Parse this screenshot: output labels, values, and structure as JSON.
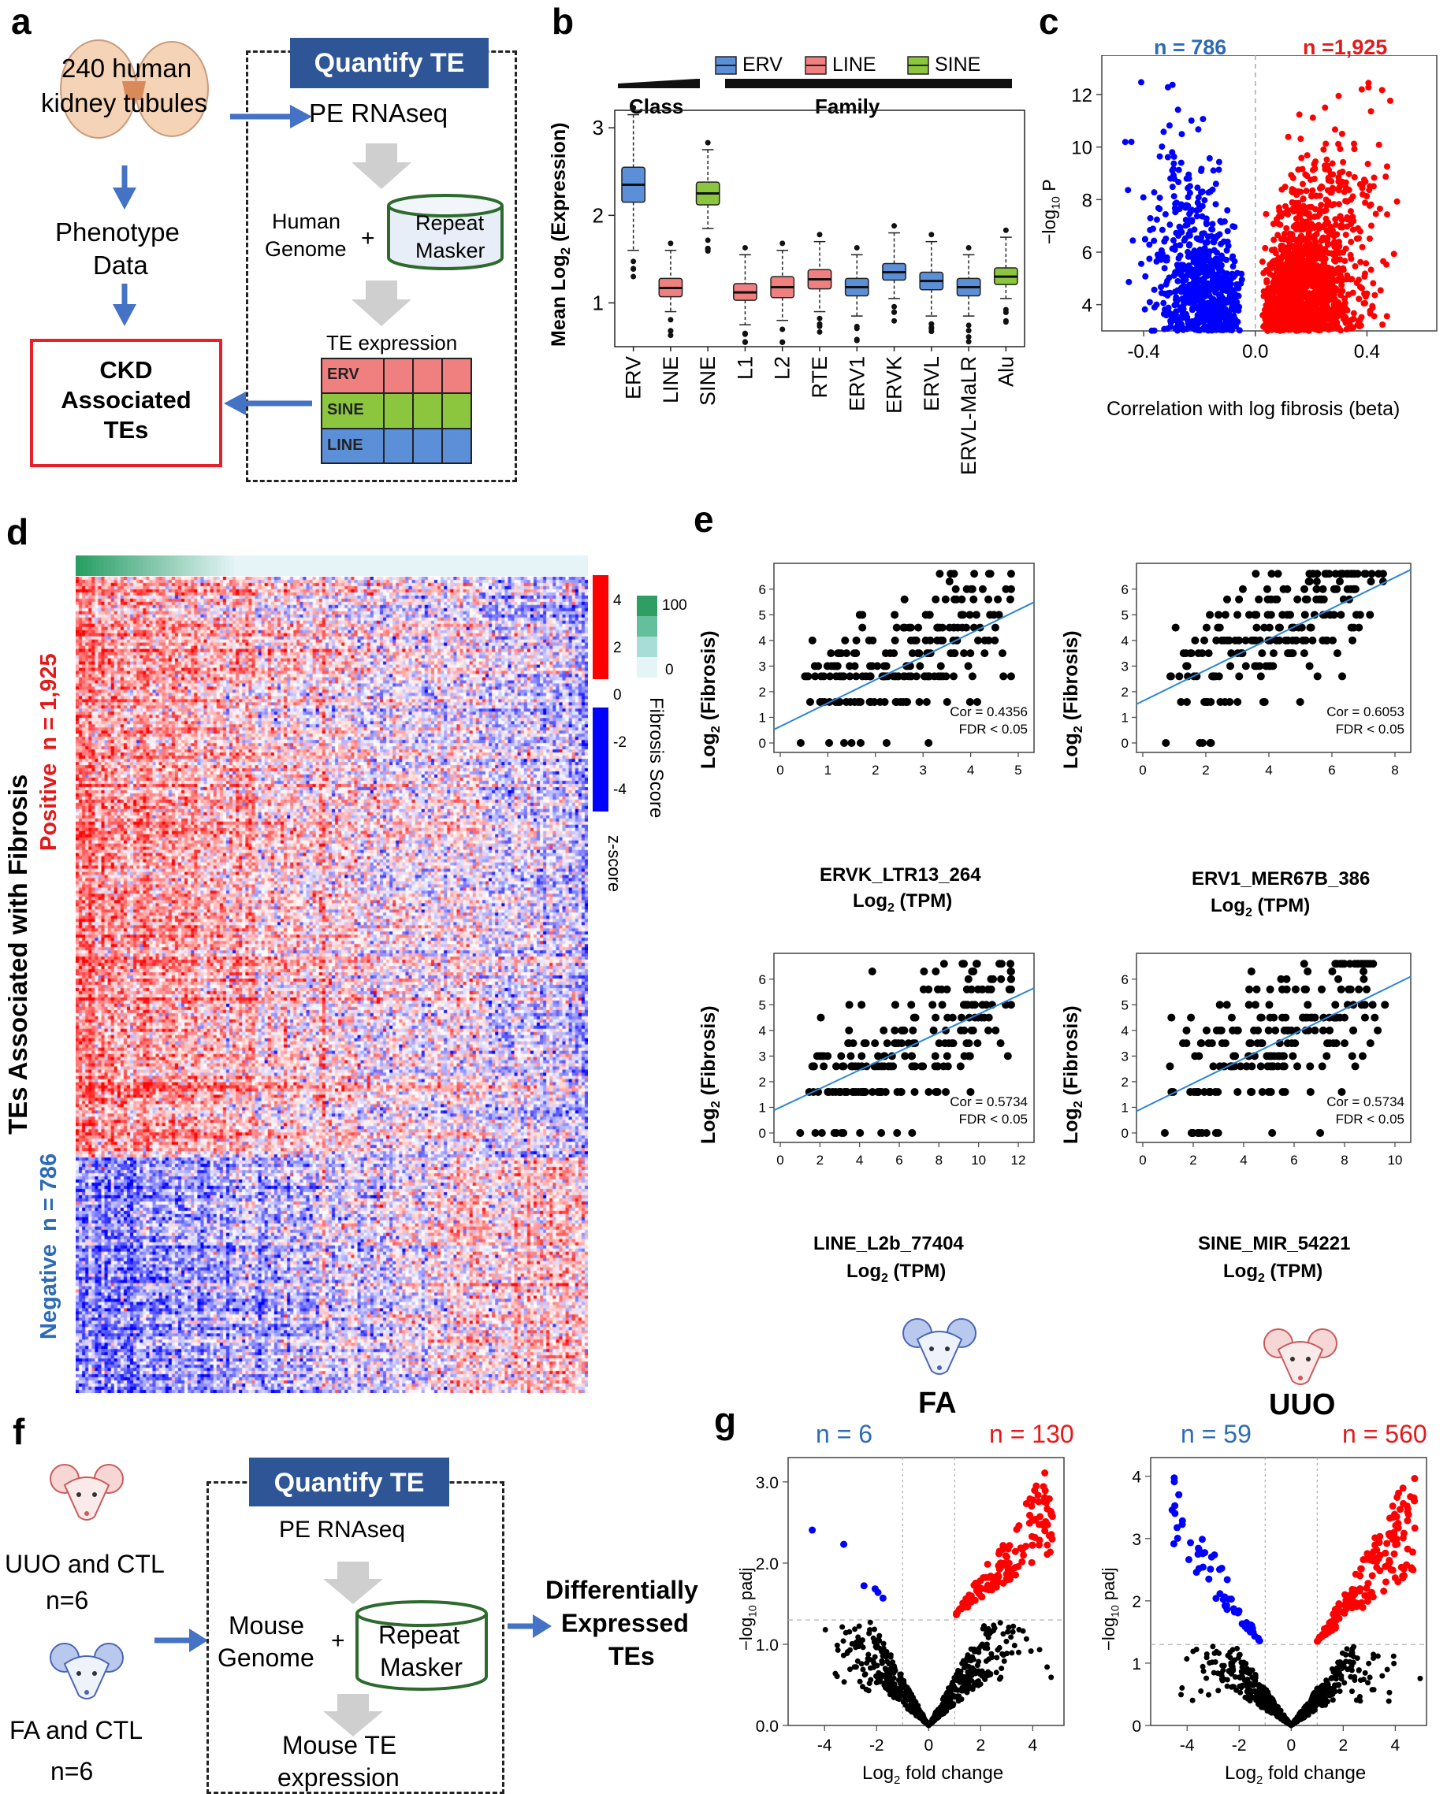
{
  "panels": [
    "a",
    "b",
    "c",
    "d",
    "e",
    "f",
    "g"
  ],
  "a": {
    "source": "240 human\nkidney tubules",
    "source_l1": "240 human",
    "source_l2": "kidney tubules",
    "quantify": "Quantify TE",
    "pe": "PE RNAseq",
    "genome_l1": "Human",
    "genome_l2": "Genome",
    "plus": "+",
    "repeat_l1": "Repeat",
    "repeat_l2": "Masker",
    "te_expr": "TE expression",
    "rows": [
      "ERV",
      "SINE",
      "LINE"
    ],
    "phen_l1": "Phenotype",
    "phen_l2": "Data",
    "ckd_l1": "CKD",
    "ckd_l2": "Associated",
    "ckd_l3": "TEs",
    "colors": {
      "ERV": "#f07f7f",
      "SINE": "#8cc63f",
      "LINE": "#5b8fd8"
    }
  },
  "b": {
    "chart_data": {
      "type": "box",
      "ylabel": "Mean Log2 (Expression)",
      "ylabel_main": "Mean Log",
      "ylabel_sub": "2",
      "ylabel_rest": " (Expression)",
      "ylim": [
        0.5,
        3.2
      ],
      "yticks": [
        "1",
        "2",
        "3"
      ],
      "legend": [
        "ERV",
        "LINE",
        "SINE"
      ],
      "group_labels": [
        "Class",
        "Family"
      ],
      "categories": [
        "ERV",
        "LINE",
        "SINE",
        "L1",
        "L2",
        "RTE",
        "ERV1",
        "ERVK",
        "ERVL",
        "ERVL-MaLR",
        "Alu"
      ],
      "class": [
        "ERV",
        "LINE",
        "SINE",
        "LINE",
        "LINE",
        "LINE",
        "ERV",
        "ERV",
        "ERV",
        "ERV",
        "SINE"
      ],
      "median": [
        2.35,
        1.17,
        2.25,
        1.12,
        1.18,
        1.27,
        1.18,
        1.35,
        1.25,
        1.18,
        1.3
      ],
      "q1": [
        2.15,
        1.07,
        2.12,
        1.03,
        1.06,
        1.16,
        1.08,
        1.26,
        1.15,
        1.08,
        1.21
      ],
      "q3": [
        2.55,
        1.28,
        2.38,
        1.22,
        1.3,
        1.38,
        1.28,
        1.45,
        1.35,
        1.28,
        1.4
      ],
      "wlo": [
        1.6,
        0.9,
        1.85,
        0.75,
        0.8,
        0.9,
        0.85,
        1.05,
        0.85,
        0.85,
        1.05
      ],
      "whi": [
        3.15,
        1.6,
        2.75,
        1.55,
        1.6,
        1.7,
        1.55,
        1.8,
        1.7,
        1.55,
        1.75
      ]
    }
  },
  "c": {
    "chart_data": {
      "type": "scatter",
      "n_neg": "n = 786",
      "n_pos": "n =1,925",
      "ylabel": "−log10 P",
      "xlabel": "Correlation with log fibrosis (beta)",
      "xticks": [
        "-0.4",
        "0.0",
        "0.4"
      ],
      "yticks": [
        "4",
        "6",
        "8",
        "10",
        "12"
      ],
      "xlim": [
        -0.55,
        0.65
      ],
      "ylim": [
        3,
        13.5
      ]
    }
  },
  "d": {
    "ylabel": "TEs Associated with Fibrosis",
    "positive": "Positive",
    "pos_n": "n = 1,925",
    "negative": "Negative",
    "neg_n": "n = 786",
    "zscore_ticks": [
      "4",
      "2",
      "0",
      "-2",
      "-4"
    ],
    "zscore_label": "z-score",
    "fib_ticks": [
      "100",
      "0"
    ],
    "fib_label": "Fibrosis Score"
  },
  "e": {
    "ylabel": "Log2 (Fibrosis)",
    "plots": [
      {
        "name": "ERVK_LTR13_264",
        "unit": "Log2 (TPM)",
        "cor": "Cor = 0.4356",
        "fdr": "FDR < 0.05",
        "xticks": [
          "0",
          "1",
          "2",
          "3",
          "4",
          "5"
        ],
        "xmax": 5
      },
      {
        "name": "ERV1_MER67B_386",
        "unit": "Log2 (TPM)",
        "cor": "Cor = 0.6053",
        "fdr": "FDR < 0.05",
        "xticks": [
          "0",
          "2",
          "4",
          "6",
          "8"
        ],
        "xmax": 8
      },
      {
        "name": "LINE_L2b_77404",
        "unit": "Log2 (TPM)",
        "cor": "Cor = 0.5734",
        "fdr": "FDR < 0.05",
        "xticks": [
          "0",
          "2",
          "4",
          "6",
          "8",
          "10",
          "12"
        ],
        "xmax": 12
      },
      {
        "name": "SINE_MIR_54221",
        "unit": "Log2 (TPM)",
        "cor": "Cor = 0.5734",
        "fdr": "FDR < 0.05",
        "xticks": [
          "0",
          "2",
          "4",
          "6",
          "8",
          "10"
        ],
        "xmax": 10
      }
    ],
    "yticks": [
      "0",
      "1",
      "2",
      "3",
      "4",
      "5",
      "6"
    ]
  },
  "f": {
    "uuo_l1": "UUO and CTL",
    "uuo_l2": "n=6",
    "fa_l1": "FA and CTL",
    "fa_l2": "n=6",
    "quantify": "Quantify TE",
    "pe": "PE RNAseq",
    "genome_l1": "Mouse",
    "genome_l2": "Genome",
    "plus": "+",
    "repeat_l1": "Repeat",
    "repeat_l2": "Masker",
    "te_l1": "Mouse TE",
    "te_l2": "expression",
    "de_l1": "Differentially",
    "de_l2": "Expressed",
    "de_l3": "TEs"
  },
  "g": {
    "plots": [
      {
        "title": "FA",
        "n_down": "n = 6",
        "n_up": "n = 130",
        "yticks": [
          "0.0",
          "1.0",
          "2.0",
          "3.0"
        ],
        "xticks": [
          "-4",
          "-2",
          "0",
          "2",
          "4"
        ]
      },
      {
        "title": "UUO",
        "n_down": "n = 59",
        "n_up": "n = 560",
        "yticks": [
          "0",
          "1",
          "2",
          "3",
          "4"
        ],
        "xticks": [
          "-4",
          "-2",
          "0",
          "2",
          "4"
        ]
      }
    ],
    "ylabel": "−log10 padj",
    "xlabel": "Log2 fold change"
  }
}
